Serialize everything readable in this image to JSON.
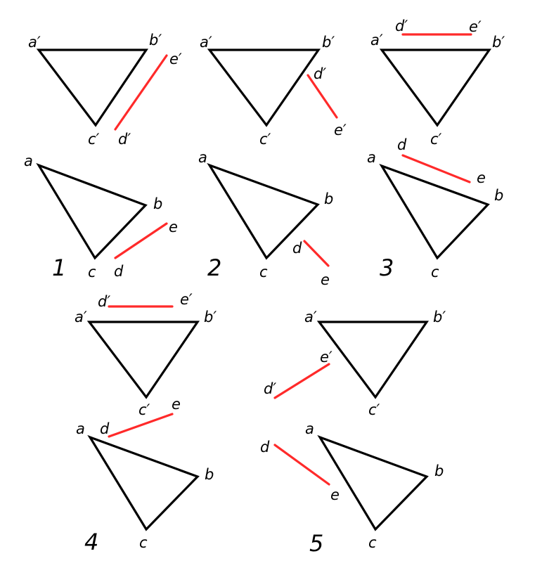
{
  "diagram": {
    "line_colors": {
      "triangle": "#000000",
      "segment": "#ff2a2a"
    },
    "variants": [
      {
        "number": "1",
        "front": {
          "a": "a′",
          "b": "b′",
          "c": "c′",
          "d": "d′",
          "e": "e′"
        },
        "top": {
          "a": "a",
          "b": "b",
          "c": "c",
          "d": "d",
          "e": "e"
        }
      },
      {
        "number": "2",
        "front": {
          "a": "a′",
          "b": "b′",
          "c": "c′",
          "d": "d′",
          "e": "e′"
        },
        "top": {
          "a": "a",
          "b": "b",
          "c": "c",
          "d": "d",
          "e": "e"
        }
      },
      {
        "number": "3",
        "front": {
          "a": "a′",
          "b": "b′",
          "c": "c′",
          "d": "d′",
          "e": "e′"
        },
        "top": {
          "a": "a",
          "b": "b",
          "c": "c",
          "d": "d",
          "e": "e"
        }
      },
      {
        "number": "4",
        "front": {
          "a": "a′",
          "b": "b′",
          "c": "c′",
          "d": "d′",
          "e": "e′"
        },
        "top": {
          "a": "a",
          "b": "b",
          "c": "c",
          "d": "d",
          "e": "e"
        }
      },
      {
        "number": "5",
        "front": {
          "a": "a′",
          "b": "b′",
          "c": "c′",
          "d": "d′",
          "e": "e′"
        },
        "top": {
          "a": "a",
          "b": "b",
          "c": "c",
          "d": "d",
          "e": "e"
        }
      }
    ]
  }
}
